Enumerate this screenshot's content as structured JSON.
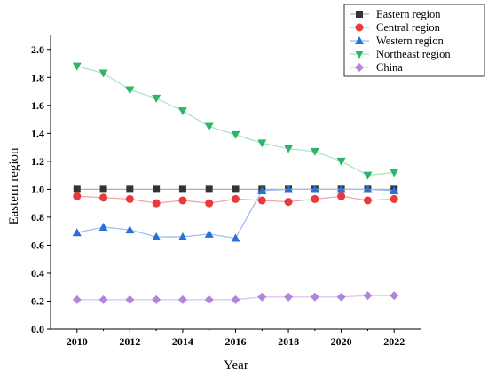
{
  "chart_data": {
    "type": "line",
    "xlabel": "Year",
    "ylabel": "Eastern region",
    "xlim": [
      2009,
      2023
    ],
    "ylim": [
      0,
      2.1
    ],
    "x_ticks": [
      2010,
      2012,
      2014,
      2016,
      2018,
      2020,
      2022
    ],
    "y_ticks": [
      0.0,
      0.2,
      0.4,
      0.6,
      0.8,
      1.0,
      1.2,
      1.4,
      1.6,
      1.8,
      2.0
    ],
    "x_tick_labels": [
      "2010",
      "2012",
      "2014",
      "2016",
      "2018",
      "2020",
      "2022"
    ],
    "y_tick_labels": [
      "0.0",
      "0.2",
      "0.4",
      "0.6",
      "0.8",
      "1.0",
      "1.2",
      "1.4",
      "1.6",
      "1.8",
      "2.0"
    ],
    "legend_position": "top-right",
    "grid": false,
    "x": [
      2010,
      2011,
      2012,
      2013,
      2014,
      2015,
      2016,
      2017,
      2018,
      2019,
      2020,
      2021,
      2022
    ],
    "series": [
      {
        "name": "Eastern region",
        "marker": "square",
        "color": "#333333",
        "line_color": "#b0b0b0",
        "values": [
          1.0,
          1.0,
          1.0,
          1.0,
          1.0,
          1.0,
          1.0,
          1.0,
          1.0,
          1.0,
          1.0,
          1.0,
          1.0
        ]
      },
      {
        "name": "Central region",
        "marker": "circle",
        "color": "#e83a3a",
        "line_color": "#f2a0a0",
        "values": [
          0.95,
          0.94,
          0.93,
          0.9,
          0.92,
          0.9,
          0.93,
          0.92,
          0.91,
          0.93,
          0.95,
          0.92,
          0.93
        ]
      },
      {
        "name": "Western region",
        "marker": "triangle-up",
        "color": "#2a6fdb",
        "line_color": "#9bbcf0",
        "values": [
          0.69,
          0.73,
          0.71,
          0.66,
          0.66,
          0.68,
          0.65,
          0.99,
          1.0,
          1.0,
          1.0,
          1.0,
          0.99
        ]
      },
      {
        "name": "Northeast region",
        "marker": "triangle-down",
        "color": "#2fb56a",
        "line_color": "#a8e2c2",
        "values": [
          1.88,
          1.83,
          1.71,
          1.65,
          1.56,
          1.45,
          1.39,
          1.33,
          1.29,
          1.27,
          1.2,
          1.1,
          1.12
        ]
      },
      {
        "name": "China",
        "marker": "diamond",
        "color": "#b383e0",
        "line_color": "#d9c2f0",
        "values": [
          0.21,
          0.21,
          0.21,
          0.21,
          0.21,
          0.21,
          0.21,
          0.23,
          0.23,
          0.23,
          0.23,
          0.24,
          0.24
        ]
      }
    ]
  }
}
